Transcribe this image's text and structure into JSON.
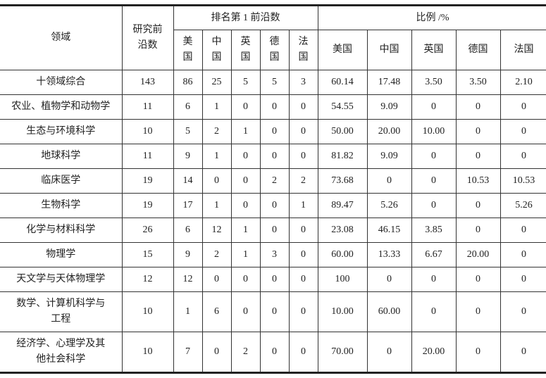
{
  "header": {
    "field": "领域",
    "total": "研究前沿数",
    "rank_group": "排名第 1 前沿数",
    "ratio_group": "比例 /%",
    "rank_countries": [
      "美国",
      "中国",
      "英国",
      "德国",
      "法国"
    ],
    "ratio_countries": [
      "美国",
      "中国",
      "英国",
      "德国",
      "法国"
    ]
  },
  "rows": [
    {
      "field": "十领域综合",
      "total": "143",
      "rank": [
        "86",
        "25",
        "5",
        "5",
        "3"
      ],
      "ratio": [
        "60.14",
        "17.48",
        "3.50",
        "3.50",
        "2.10"
      ]
    },
    {
      "field": "农业、植物学和动物学",
      "total": "11",
      "rank": [
        "6",
        "1",
        "0",
        "0",
        "0"
      ],
      "ratio": [
        "54.55",
        "9.09",
        "0",
        "0",
        "0"
      ]
    },
    {
      "field": "生态与环境科学",
      "total": "10",
      "rank": [
        "5",
        "2",
        "1",
        "0",
        "0"
      ],
      "ratio": [
        "50.00",
        "20.00",
        "10.00",
        "0",
        "0"
      ]
    },
    {
      "field": "地球科学",
      "total": "11",
      "rank": [
        "9",
        "1",
        "0",
        "0",
        "0"
      ],
      "ratio": [
        "81.82",
        "9.09",
        "0",
        "0",
        "0"
      ]
    },
    {
      "field": "临床医学",
      "total": "19",
      "rank": [
        "14",
        "0",
        "0",
        "2",
        "2"
      ],
      "ratio": [
        "73.68",
        "0",
        "0",
        "10.53",
        "10.53"
      ]
    },
    {
      "field": "生物科学",
      "total": "19",
      "rank": [
        "17",
        "1",
        "0",
        "0",
        "1"
      ],
      "ratio": [
        "89.47",
        "5.26",
        "0",
        "0",
        "5.26"
      ]
    },
    {
      "field": "化学与材料科学",
      "total": "26",
      "rank": [
        "6",
        "12",
        "1",
        "0",
        "0"
      ],
      "ratio": [
        "23.08",
        "46.15",
        "3.85",
        "0",
        "0"
      ]
    },
    {
      "field": "物理学",
      "total": "15",
      "rank": [
        "9",
        "2",
        "1",
        "3",
        "0"
      ],
      "ratio": [
        "60.00",
        "13.33",
        "6.67",
        "20.00",
        "0"
      ]
    },
    {
      "field": "天文学与天体物理学",
      "total": "12",
      "rank": [
        "12",
        "0",
        "0",
        "0",
        "0"
      ],
      "ratio": [
        "100",
        "0",
        "0",
        "0",
        "0"
      ]
    },
    {
      "field": "数学、计算机科学与工程",
      "total": "10",
      "rank": [
        "1",
        "6",
        "0",
        "0",
        "0"
      ],
      "ratio": [
        "10.00",
        "60.00",
        "0",
        "0",
        "0"
      ]
    },
    {
      "field": "经济学、心理学及其他社会科学",
      "total": "10",
      "rank": [
        "7",
        "0",
        "2",
        "0",
        "0"
      ],
      "ratio": [
        "70.00",
        "0",
        "20.00",
        "0",
        "0"
      ]
    }
  ]
}
